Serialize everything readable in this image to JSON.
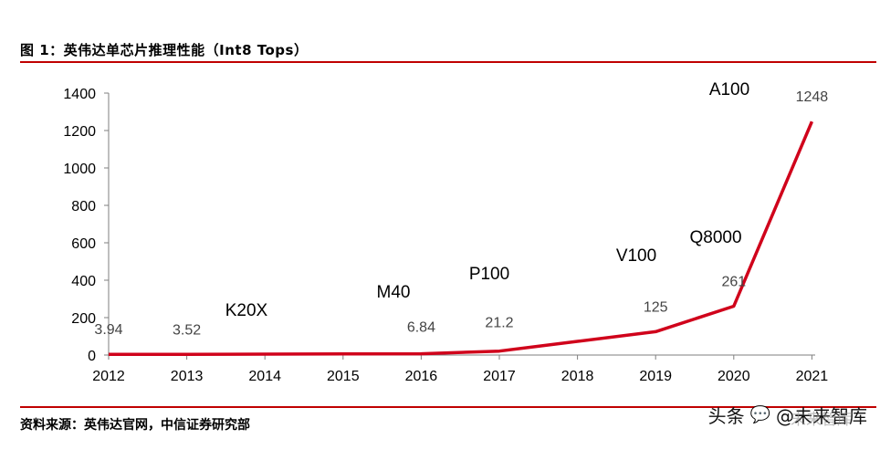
{
  "title": "图 1：英伟达单芯片推理性能（Int8 Tops）",
  "source": "资料来源：英伟达官网，中信证券研究部",
  "watermark": {
    "prefix": "头条",
    "name": "@未来智库",
    "top_text": "未来智库"
  },
  "colors": {
    "rule": "#c00000",
    "line": "#d0021b"
  },
  "chart_data": {
    "type": "line",
    "title": "英伟达单芯片推理性能（Int8 Tops）",
    "xlabel": "",
    "ylabel": "",
    "x": [
      "2012",
      "2013",
      "2014",
      "2015",
      "2016",
      "2017",
      "2018",
      "2019",
      "2020",
      "2021"
    ],
    "series": [
      {
        "name": "Int8 Tops",
        "values": [
          3.94,
          3.52,
          5,
          6,
          6.84,
          21.2,
          73,
          125,
          261,
          1248
        ]
      }
    ],
    "ylim": [
      0,
      1400
    ],
    "yticks": [
      0,
      200,
      400,
      600,
      800,
      1000,
      1200,
      1400
    ],
    "data_labels": [
      {
        "x": "2012",
        "text": "3.94"
      },
      {
        "x": "2013",
        "text": "3.52"
      },
      {
        "x": "2016",
        "text": "6.84"
      },
      {
        "x": "2017",
        "text": "21.2"
      },
      {
        "x": "2019",
        "text": "125"
      },
      {
        "x": "2020",
        "text": "261"
      },
      {
        "x": "2021",
        "text": "1248"
      }
    ],
    "annotations": [
      {
        "text": "K20X",
        "x": "2014"
      },
      {
        "text": "M40",
        "x": "2016"
      },
      {
        "text": "P100",
        "x": "2017"
      },
      {
        "text": "V100",
        "x": "2019"
      },
      {
        "text": "Q8000",
        "x": "2020"
      },
      {
        "text": "A100",
        "x": "2021"
      }
    ]
  }
}
